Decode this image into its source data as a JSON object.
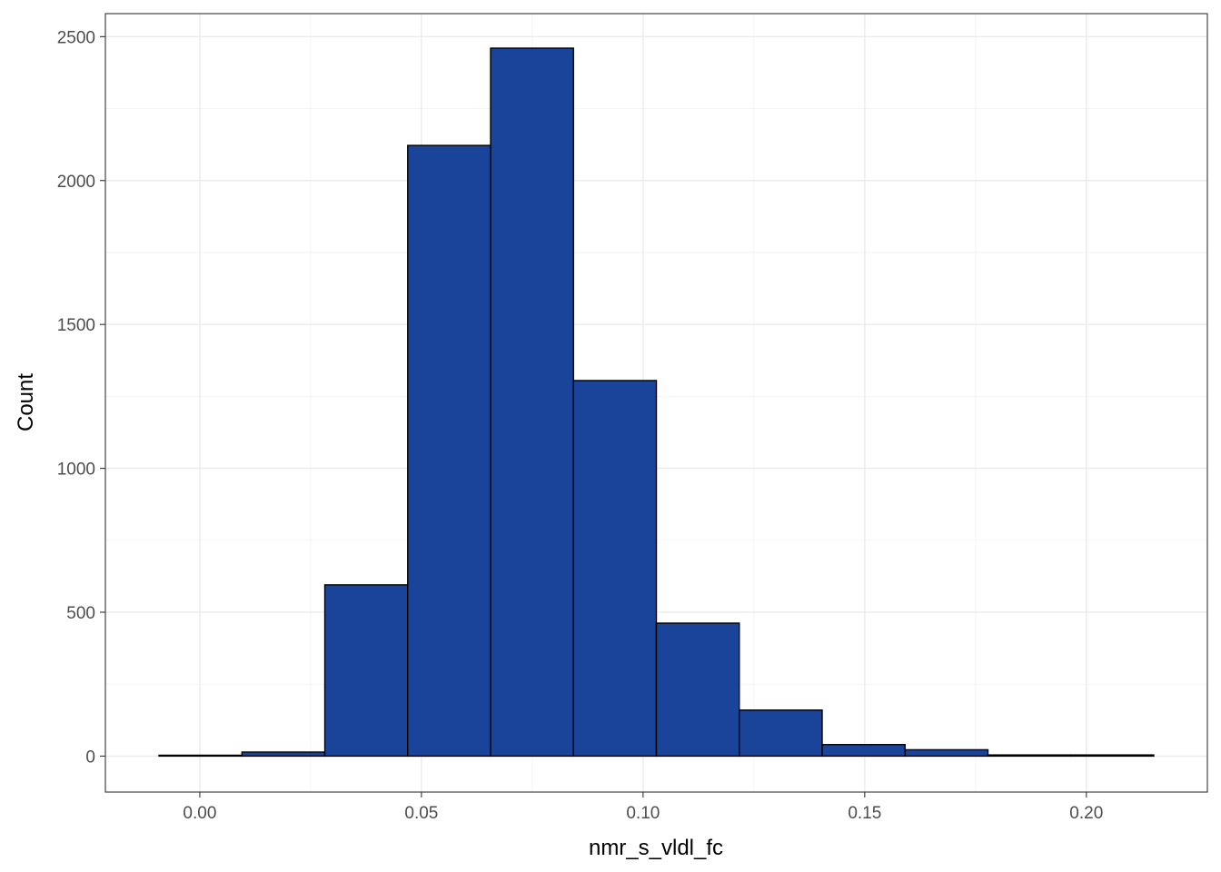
{
  "chart_data": {
    "type": "histogram",
    "xlabel": "nmr_s_vldl_fc",
    "ylabel": "Count",
    "xlim": [
      -0.0213,
      0.2273
    ],
    "ylim": [
      -125,
      2580
    ],
    "x_ticks": [
      0.0,
      0.05,
      0.1,
      0.15,
      0.2
    ],
    "x_tick_labels": [
      "0.00",
      "0.05",
      "0.10",
      "0.15",
      "0.20"
    ],
    "y_ticks": [
      0,
      500,
      1000,
      1500,
      2000,
      2500
    ],
    "y_tick_labels": [
      "0",
      "500",
      "1000",
      "1500",
      "2000",
      "2500"
    ],
    "grid": true,
    "bin_edges": [
      -0.0092,
      0.0095,
      0.0282,
      0.0469,
      0.0656,
      0.0843,
      0.103,
      0.1217,
      0.1404,
      0.1591,
      0.1778,
      0.1965,
      0.2152
    ],
    "values": [
      3,
      14,
      595,
      2122,
      2460,
      1305,
      462,
      160,
      40,
      22,
      4,
      4
    ],
    "fill_color": "#1a4499",
    "edge_color": "#000000"
  }
}
